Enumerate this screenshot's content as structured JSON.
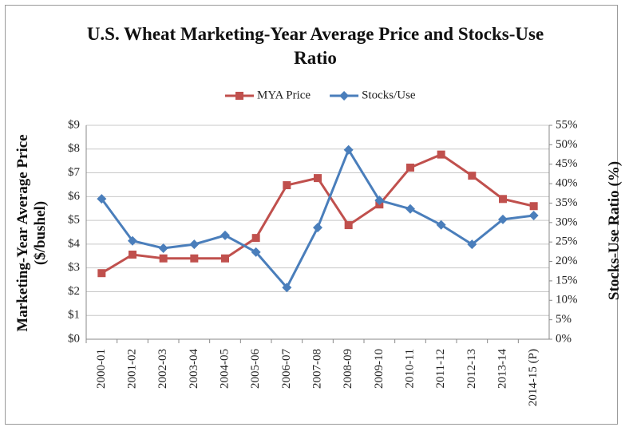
{
  "chart_data": {
    "type": "line",
    "title": "U.S. Wheat Marketing-Year Average Price and Stocks-Use Ratio",
    "ylabel": "Marketing-Year Average Price ($/bushel)",
    "y2label": "Stocks-Use Ratio (%)",
    "categories": [
      "2000-01",
      "2001-02",
      "2002-03",
      "2003-04",
      "2004-05",
      "2005-06",
      "2006-07",
      "2007-08",
      "2008-09",
      "2009-10",
      "2010-11",
      "2011-12",
      "2012-13",
      "2013-14",
      "2014-15 (P)"
    ],
    "series": [
      {
        "name": "MYA Price",
        "color": "#c0504d",
        "marker": "square",
        "axis": "y",
        "values": [
          2.78,
          3.56,
          3.4,
          3.4,
          3.4,
          4.26,
          6.48,
          6.78,
          4.8,
          5.67,
          7.22,
          7.77,
          6.88,
          5.9,
          5.6
        ]
      },
      {
        "name": "Stocks/Use",
        "color": "#4a7ebb",
        "marker": "diamond",
        "axis": "y2",
        "values": [
          36.1,
          25.3,
          23.4,
          24.4,
          26.7,
          22.4,
          13.3,
          28.7,
          48.7,
          35.7,
          33.5,
          29.4,
          24.4,
          30.8,
          31.8
        ]
      }
    ],
    "ylim": [
      0,
      9
    ],
    "yticks": [
      {
        "value": 0,
        "label": "$0"
      },
      {
        "value": 1,
        "label": "$1"
      },
      {
        "value": 2,
        "label": "$2"
      },
      {
        "value": 3,
        "label": "$3"
      },
      {
        "value": 4,
        "label": "$4"
      },
      {
        "value": 5,
        "label": "$5"
      },
      {
        "value": 6,
        "label": "$6"
      },
      {
        "value": 7,
        "label": "$7"
      },
      {
        "value": 8,
        "label": "$8"
      },
      {
        "value": 9,
        "label": "$9"
      }
    ],
    "y2lim": [
      0,
      55
    ],
    "y2ticks": [
      {
        "value": 0,
        "label": "0%"
      },
      {
        "value": 5,
        "label": "5%"
      },
      {
        "value": 10,
        "label": "10%"
      },
      {
        "value": 15,
        "label": "15%"
      },
      {
        "value": 20,
        "label": "20%"
      },
      {
        "value": 25,
        "label": "25%"
      },
      {
        "value": 30,
        "label": "30%"
      },
      {
        "value": 35,
        "label": "35%"
      },
      {
        "value": 40,
        "label": "40%"
      },
      {
        "value": 45,
        "label": "45%"
      },
      {
        "value": 50,
        "label": "50%"
      },
      {
        "value": 55,
        "label": "55%"
      }
    ],
    "grid": true,
    "legend": "top"
  }
}
